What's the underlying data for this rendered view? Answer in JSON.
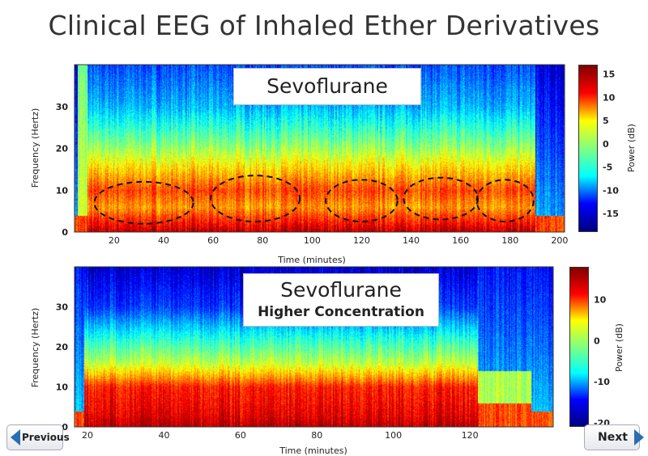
{
  "slide": {
    "title": "Clinical EEG of Inhaled Ether Derivatives"
  },
  "navigation": {
    "previous_label": "Previous",
    "next_label": "Next",
    "accent": "#2a6db0"
  },
  "chart_data": [
    {
      "type": "heatmap",
      "label": "Sevoflurane",
      "sublabel": "",
      "xlabel": "Time (minutes)",
      "ylabel": "Frequency (Hertz)",
      "colorbar_label": "Power (dB)",
      "colormap": "jet",
      "xlim": [
        4,
        202
      ],
      "ylim": [
        0,
        40
      ],
      "clim": [
        -19,
        17
      ],
      "xticks": [
        20,
        40,
        60,
        80,
        100,
        120,
        140,
        160,
        180,
        200
      ],
      "yticks": [
        0,
        10,
        20,
        30
      ],
      "cticks": [
        15,
        10,
        5,
        0,
        -5,
        -10,
        -15
      ],
      "profile": {
        "freq_hz": [
          0,
          3,
          6,
          10,
          14,
          20,
          30,
          40
        ],
        "power_db": [
          15,
          11,
          7,
          10,
          6,
          0,
          -8,
          -12
        ]
      },
      "anesthesia_interval": [
        9,
        190
      ],
      "annotations": [
        {
          "shape": "dashed-ellipse",
          "t_center": 32,
          "f_center": 7,
          "t_span": 40,
          "f_span": 10
        },
        {
          "shape": "dashed-ellipse",
          "t_center": 77,
          "f_center": 8,
          "t_span": 36,
          "f_span": 11
        },
        {
          "shape": "dashed-ellipse",
          "t_center": 120,
          "f_center": 7.5,
          "t_span": 29,
          "f_span": 10
        },
        {
          "shape": "dashed-ellipse",
          "t_center": 152,
          "f_center": 8,
          "t_span": 30,
          "f_span": 10
        },
        {
          "shape": "dashed-ellipse",
          "t_center": 178,
          "f_center": 7.5,
          "t_span": 23,
          "f_span": 10
        }
      ]
    },
    {
      "type": "heatmap",
      "label": "Sevoflurane",
      "sublabel": "Higher Concentration",
      "xlabel": "Time (minutes)",
      "ylabel": "Frequency (Hertz)",
      "colorbar_label": "Power (dB)",
      "colormap": "jet",
      "xlim": [
        16.6,
        141.8
      ],
      "ylim": [
        0,
        40
      ],
      "clim": [
        -21,
        18
      ],
      "xticks": [
        20,
        40,
        60,
        80,
        100,
        120
      ],
      "yticks": [
        0,
        10,
        20,
        30
      ],
      "cticks": [
        10,
        0,
        -10,
        -20
      ],
      "profile": {
        "freq_hz": [
          0,
          3,
          6,
          10,
          12,
          16,
          22,
          30,
          40
        ],
        "power_db": [
          16,
          14,
          13,
          12,
          8,
          1,
          -5,
          -14,
          -18
        ]
      },
      "anesthesia_interval": [
        19,
        122
      ]
    }
  ]
}
